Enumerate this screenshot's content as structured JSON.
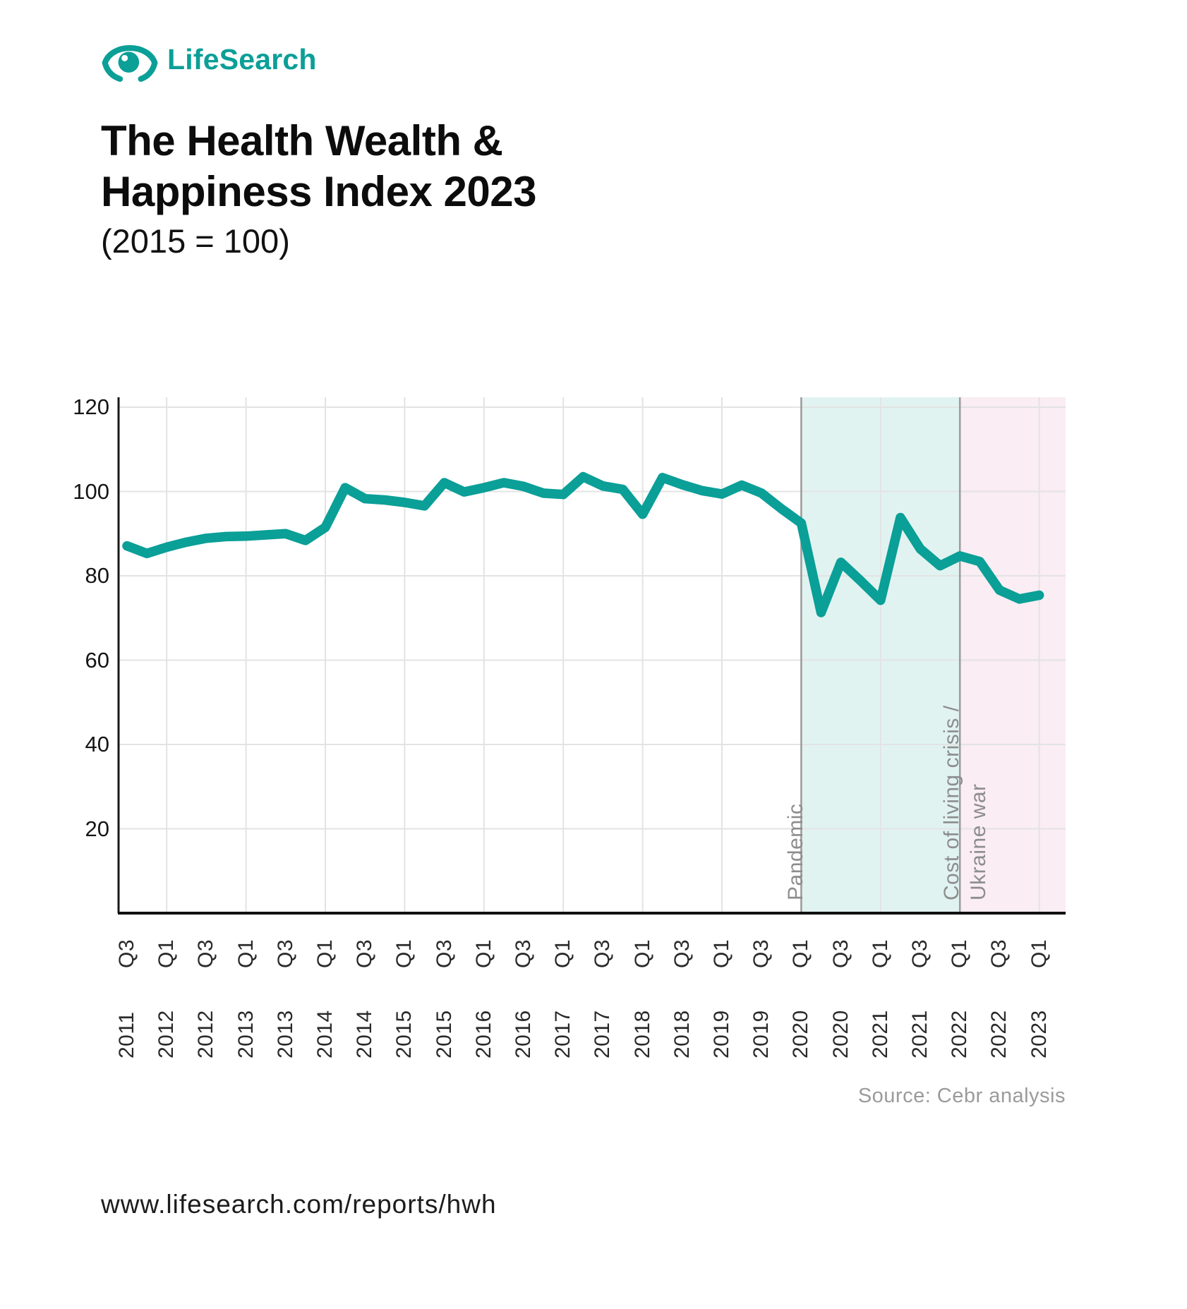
{
  "logo": {
    "brand": "LifeSearch"
  },
  "title": {
    "line1": "The Health Wealth &",
    "line2": "Happiness Index 2023",
    "subtitle": "(2015 = 100)"
  },
  "source": "Source: Cebr analysis",
  "footer_url": "www.lifesearch.com/reports/hwh",
  "colors": {
    "teal": "#0a9f97",
    "line": "#0a9f97",
    "grid": "#e3e3e3",
    "axis": "#1a1a1a",
    "region_boundary": "#9b9b9b",
    "pandemic_fill": "#e1f3f0",
    "crisis_fill": "#faedf3",
    "muted_text": "#8d8d8d"
  },
  "chart_data": {
    "type": "line",
    "title": "The Health Wealth & Happiness Index 2023 (2015 = 100)",
    "ylim": [
      0,
      120
    ],
    "yticks": [
      20,
      40,
      60,
      80,
      100,
      120
    ],
    "grid": "on",
    "x": [
      "2011 Q3",
      "2011 Q4",
      "2012 Q1",
      "2012 Q2",
      "2012 Q3",
      "2012 Q4",
      "2013 Q1",
      "2013 Q2",
      "2013 Q3",
      "2013 Q4",
      "2014 Q1",
      "2014 Q2",
      "2014 Q3",
      "2014 Q4",
      "2015 Q1",
      "2015 Q2",
      "2015 Q3",
      "2015 Q4",
      "2016 Q1",
      "2016 Q2",
      "2016 Q3",
      "2016 Q4",
      "2017 Q1",
      "2017 Q2",
      "2017 Q3",
      "2017 Q4",
      "2018 Q1",
      "2018 Q2",
      "2018 Q3",
      "2018 Q4",
      "2019 Q1",
      "2019 Q2",
      "2019 Q3",
      "2019 Q4",
      "2020 Q1",
      "2020 Q2",
      "2020 Q3",
      "2020 Q4",
      "2021 Q1",
      "2021 Q2",
      "2021 Q3",
      "2021 Q4",
      "2022 Q1",
      "2022 Q2",
      "2022 Q3",
      "2022 Q4",
      "2023 Q1"
    ],
    "values": [
      87.1,
      85.3,
      86.8,
      88.0,
      88.9,
      89.3,
      89.4,
      89.7,
      90.0,
      88.4,
      91.5,
      100.9,
      98.3,
      98.0,
      97.4,
      96.6,
      102.1,
      99.9,
      100.9,
      102.1,
      101.2,
      99.6,
      99.3,
      103.5,
      101.3,
      100.5,
      94.6,
      103.3,
      101.6,
      100.2,
      99.4,
      101.5,
      99.6,
      95.9,
      92.5,
      71.3,
      83.2,
      78.8,
      74.2,
      93.8,
      86.4,
      82.4,
      84.7,
      83.4,
      76.6,
      74.5,
      75.4
    ],
    "xtick_labels": [
      "2011 Q3",
      "2012 Q1",
      "2012 Q3",
      "2013 Q1",
      "2013 Q3",
      "2014 Q1",
      "2014 Q3",
      "2015 Q1",
      "2015 Q3",
      "2016 Q1",
      "2016 Q3",
      "2017 Q1",
      "2017 Q3",
      "2018 Q1",
      "2018 Q3",
      "2019 Q1",
      "2019 Q3",
      "2020 Q1",
      "2020 Q3",
      "2021 Q1",
      "2021 Q3",
      "2022 Q1",
      "2022 Q3",
      "2023 Q1"
    ],
    "regions": [
      {
        "label": "Pandemic",
        "label_lines": [
          "Pandemic"
        ],
        "from": "2020 Q1",
        "to": "2022 Q1"
      },
      {
        "label": "Cost of living crisis / Ukraine war",
        "label_lines": [
          "Cost of living crisis /",
          "Ukraine war"
        ],
        "from": "2022 Q1",
        "to": "end"
      }
    ],
    "legend": "off"
  }
}
